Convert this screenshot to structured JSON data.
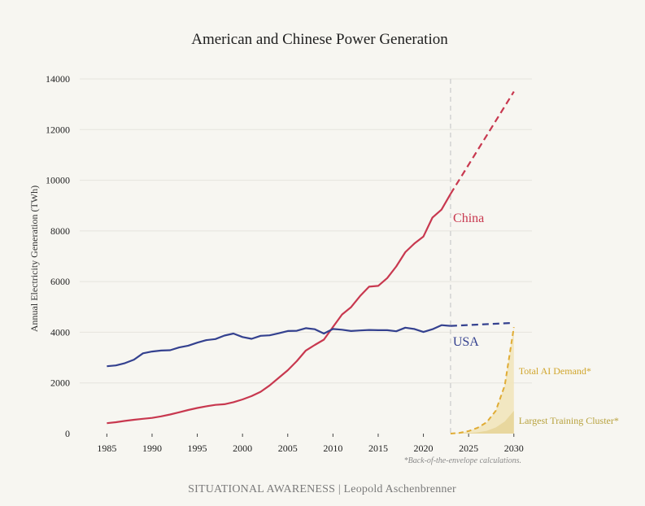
{
  "chart_data": {
    "type": "line",
    "title": "American and Chinese Power Generation",
    "ylabel": "Annual Electricity Generation (TWh)",
    "xlabel": "",
    "xlim": [
      1982,
      2032
    ],
    "ylim": [
      0,
      14000
    ],
    "x_ticks": [
      1985,
      1990,
      1995,
      2000,
      2005,
      2010,
      2015,
      2020,
      2025,
      2030
    ],
    "y_ticks": [
      0,
      2000,
      4000,
      6000,
      8000,
      10000,
      12000,
      14000
    ],
    "grid": "horizontal",
    "projection_start": 2023,
    "series": [
      {
        "name": "China",
        "color": "#c8384f",
        "x": [
          1985,
          1986,
          1987,
          1988,
          1989,
          1990,
          1991,
          1992,
          1993,
          1994,
          1995,
          1996,
          1997,
          1998,
          1999,
          2000,
          2001,
          2002,
          2003,
          2004,
          2005,
          2006,
          2007,
          2008,
          2009,
          2010,
          2011,
          2012,
          2013,
          2014,
          2015,
          2016,
          2017,
          2018,
          2019,
          2020,
          2021,
          2022,
          2023
        ],
        "values": [
          410,
          450,
          500,
          545,
          585,
          620,
          680,
          755,
          840,
          930,
          1010,
          1080,
          1135,
          1160,
          1240,
          1350,
          1480,
          1650,
          1900,
          2200,
          2500,
          2860,
          3280,
          3500,
          3710,
          4210,
          4700,
          4990,
          5430,
          5800,
          5830,
          6140,
          6600,
          7160,
          7500,
          7780,
          8530,
          8840,
          9460
        ],
        "projection": {
          "x": [
            2023,
            2030
          ],
          "values": [
            9460,
            13500
          ]
        }
      },
      {
        "name": "USA",
        "color": "#34418f",
        "x": [
          1985,
          1986,
          1987,
          1988,
          1989,
          1990,
          1991,
          1992,
          1993,
          1994,
          1995,
          1996,
          1997,
          1998,
          1999,
          2000,
          2001,
          2002,
          2003,
          2004,
          2005,
          2006,
          2007,
          2008,
          2009,
          2010,
          2011,
          2012,
          2013,
          2014,
          2015,
          2016,
          2017,
          2018,
          2019,
          2020,
          2021,
          2022,
          2023
        ],
        "values": [
          2660,
          2690,
          2780,
          2920,
          3170,
          3240,
          3280,
          3290,
          3400,
          3470,
          3590,
          3690,
          3730,
          3870,
          3950,
          3810,
          3740,
          3860,
          3880,
          3960,
          4050,
          4060,
          4160,
          4120,
          3950,
          4130,
          4100,
          4050,
          4070,
          4090,
          4080,
          4080,
          4040,
          4180,
          4130,
          4010,
          4120,
          4280,
          4250
        ],
        "projection": {
          "x": [
            2023,
            2030
          ],
          "values": [
            4250,
            4370
          ]
        }
      },
      {
        "name": "Total AI Demand*",
        "color": "#e0ac35",
        "x": [
          2023,
          2024,
          2025,
          2026,
          2027,
          2028,
          2029,
          2030
        ],
        "values": [
          0,
          30,
          100,
          230,
          450,
          900,
          1900,
          4200
        ]
      },
      {
        "name": "Largest Training Cluster*",
        "color": "#d9c88d",
        "x": [
          2023,
          2024,
          2025,
          2026,
          2027,
          2028,
          2029,
          2030
        ],
        "values": [
          0,
          5,
          20,
          50,
          110,
          240,
          480,
          900
        ]
      }
    ],
    "annotations": [
      {
        "text": "China",
        "x": 2025.0,
        "y": 8350
      },
      {
        "text": "USA",
        "x": 2024.7,
        "y": 3470
      }
    ],
    "footnote": "*Back-of-the-envelope calculations.",
    "credit": "SITUATIONAL AWARENESS | Leopold Aschenbrenner"
  }
}
